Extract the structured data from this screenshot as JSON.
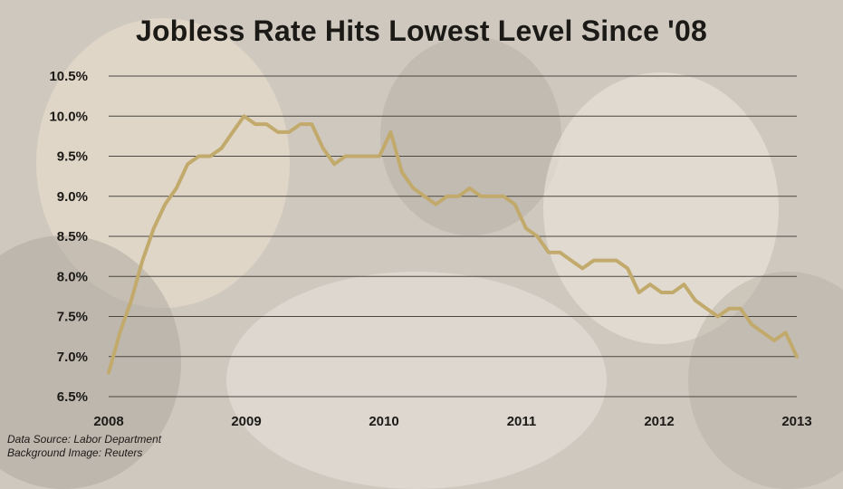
{
  "chart_data": {
    "type": "line",
    "title": "Jobless Rate Hits Lowest Level Since '08",
    "xlabel": "",
    "ylabel": "",
    "x_tick_labels": [
      "2008",
      "2009",
      "2010",
      "2011",
      "2012",
      "2013"
    ],
    "y_tick_labels": [
      "6.5%",
      "7.0%",
      "7.5%",
      "8.0%",
      "8.5%",
      "9.0%",
      "9.5%",
      "10.0%",
      "10.5%"
    ],
    "ylim": [
      6.5,
      10.5
    ],
    "xlim": [
      2008,
      2013
    ],
    "grid": "horizontal",
    "legend": "none",
    "line_color": "#c2aa6c",
    "series": [
      {
        "name": "",
        "x_start": "2008-01",
        "frequency": "monthly",
        "values": [
          6.8,
          7.3,
          7.7,
          8.2,
          8.6,
          8.9,
          9.1,
          9.4,
          9.5,
          9.5,
          9.6,
          9.8,
          10.0,
          9.9,
          9.9,
          9.8,
          9.8,
          9.9,
          9.9,
          9.6,
          9.4,
          9.5,
          9.5,
          9.5,
          9.5,
          9.8,
          9.3,
          9.1,
          9.0,
          8.9,
          9.0,
          9.0,
          9.1,
          9.0,
          9.0,
          9.0,
          8.9,
          8.6,
          8.5,
          8.3,
          8.3,
          8.2,
          8.1,
          8.2,
          8.2,
          8.2,
          8.1,
          7.8,
          7.9,
          7.8,
          7.8,
          7.9,
          7.7,
          7.6,
          7.5,
          7.6,
          7.6,
          7.4,
          7.3,
          7.2,
          7.3,
          7.0
        ]
      }
    ]
  },
  "source": {
    "line1": "Data Source: Labor Department",
    "line2": "Background Image: Reuters"
  }
}
